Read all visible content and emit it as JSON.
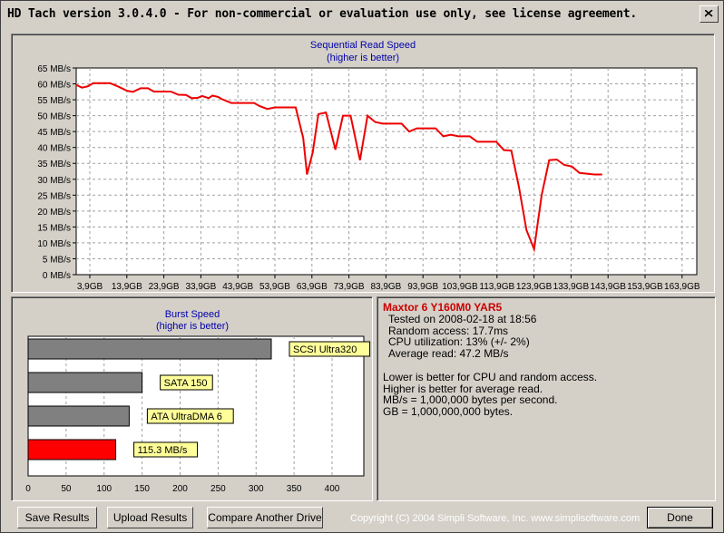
{
  "window": {
    "title": "HD Tach version 3.0.4.0  - For non-commercial or evaluation use only, see license agreement."
  },
  "colors": {
    "series_line": "#ee0000",
    "chart_title": "#0000aa",
    "device_name": "#cc0000",
    "bar_gray": "#808080",
    "bar_highlight": "#ff0000",
    "label_bg": "#ffff99"
  },
  "chart_data": [
    {
      "type": "line",
      "title": "Sequential Read Speed",
      "subtitle": "(higher is better)",
      "ylim": [
        0,
        65
      ],
      "y_ticks": [
        "0 MB/s",
        "5 MB/s",
        "10 MB/s",
        "15 MB/s",
        "20 MB/s",
        "25 MB/s",
        "30 MB/s",
        "35 MB/s",
        "40 MB/s",
        "45 MB/s",
        "50 MB/s",
        "55 MB/s",
        "60 MB/s",
        "65 MB/s"
      ],
      "x_ticks": [
        "3,9GB",
        "13,9GB",
        "23,9GB",
        "33,9GB",
        "43,9GB",
        "53,9GB",
        "63,9GB",
        "73,9GB",
        "83,9GB",
        "93,9GB",
        "103,9GB",
        "113,9GB",
        "123,9GB",
        "133,9GB",
        "143,9GB",
        "153,9GB",
        "163,9GB"
      ],
      "xlim": [
        0,
        164
      ],
      "grid": true,
      "series": [
        {
          "points": [
            [
              0,
              59.7
            ],
            [
              1.5,
              58.8
            ],
            [
              3,
              59.2
            ],
            [
              4.5,
              60.2
            ],
            [
              9,
              60.2
            ],
            [
              11,
              59.2
            ],
            [
              13.5,
              57.8
            ],
            [
              15,
              57.5
            ],
            [
              17,
              58.6
            ],
            [
              19,
              58.6
            ],
            [
              20.5,
              57.6
            ],
            [
              25,
              57.6
            ],
            [
              27,
              56.6
            ],
            [
              29,
              56.5
            ],
            [
              30.5,
              55.5
            ],
            [
              32,
              55.6
            ],
            [
              33.3,
              56.2
            ],
            [
              35,
              55.5
            ],
            [
              36,
              56.3
            ],
            [
              37.5,
              55.9
            ],
            [
              38.5,
              55.2
            ],
            [
              41,
              54.0
            ],
            [
              47,
              54.0
            ],
            [
              48.5,
              53.0
            ],
            [
              50.5,
              52.1
            ],
            [
              52.5,
              52.6
            ],
            [
              56,
              52.6
            ],
            [
              58,
              52.6
            ],
            [
              60,
              43.0
            ],
            [
              61,
              31.5
            ],
            [
              62.5,
              38.5
            ],
            [
              64,
              50.5
            ],
            [
              66,
              51.0
            ],
            [
              68.5,
              39.3
            ],
            [
              70.5,
              50.0
            ],
            [
              72.5,
              50.0
            ],
            [
              75,
              36.0
            ],
            [
              77,
              50.0
            ],
            [
              79,
              48.0
            ],
            [
              81,
              47.5
            ],
            [
              86,
              47.5
            ],
            [
              88,
              45.0
            ],
            [
              90,
              46.0
            ],
            [
              95,
              46.0
            ],
            [
              97,
              43.5
            ],
            [
              99,
              44.0
            ],
            [
              101,
              43.5
            ],
            [
              104,
              43.5
            ],
            [
              106,
              41.8
            ],
            [
              111,
              41.8
            ],
            [
              113,
              39.2
            ],
            [
              115,
              39.0
            ],
            [
              117,
              27.5
            ],
            [
              119,
              14.0
            ],
            [
              121,
              8.0
            ],
            [
              123,
              25.0
            ],
            [
              125,
              36.0
            ],
            [
              127,
              36.2
            ],
            [
              129,
              34.5
            ],
            [
              131,
              34.0
            ],
            [
              133,
              32.0
            ],
            [
              137,
              31.5
            ],
            [
              139,
              31.5
            ]
          ]
        }
      ]
    },
    {
      "type": "bar",
      "orientation": "horizontal",
      "title": "Burst Speed",
      "subtitle": "(higher is better)",
      "xlim": [
        0,
        440
      ],
      "x_ticks": [
        "0",
        "50",
        "100",
        "150",
        "200",
        "250",
        "300",
        "350",
        "400"
      ],
      "grid": true,
      "bars": [
        {
          "label": "SCSI Ultra320",
          "value": 320,
          "highlight": false
        },
        {
          "label": "SATA 150",
          "value": 150,
          "highlight": false
        },
        {
          "label": "ATA UltraDMA 6",
          "value": 133,
          "highlight": false
        },
        {
          "label": "115.3 MB/s",
          "value": 115.3,
          "highlight": true
        }
      ]
    }
  ],
  "info": {
    "device": "Maxtor 6 Y160M0 YAR5",
    "tested_on": "Tested on 2008-02-18 at 18:56",
    "random_access": "Random access: 17.7ms",
    "cpu": "CPU utilization: 13% (+/- 2%)",
    "avg_read": "Average read: 47.2 MB/s",
    "note1": "Lower is better for CPU and random access.",
    "note2": "Higher is better for average read.",
    "note3": "MB/s = 1,000,000 bytes per second.",
    "note4": "GB = 1,000,000,000 bytes."
  },
  "buttons": {
    "save": "Save Results",
    "upload": "Upload Results",
    "compare": "Compare Another Drive",
    "done": "Done"
  },
  "footer": {
    "copyright": "Copyright (C) 2004 Simpli Software, Inc. www.simplisoftware.com"
  }
}
